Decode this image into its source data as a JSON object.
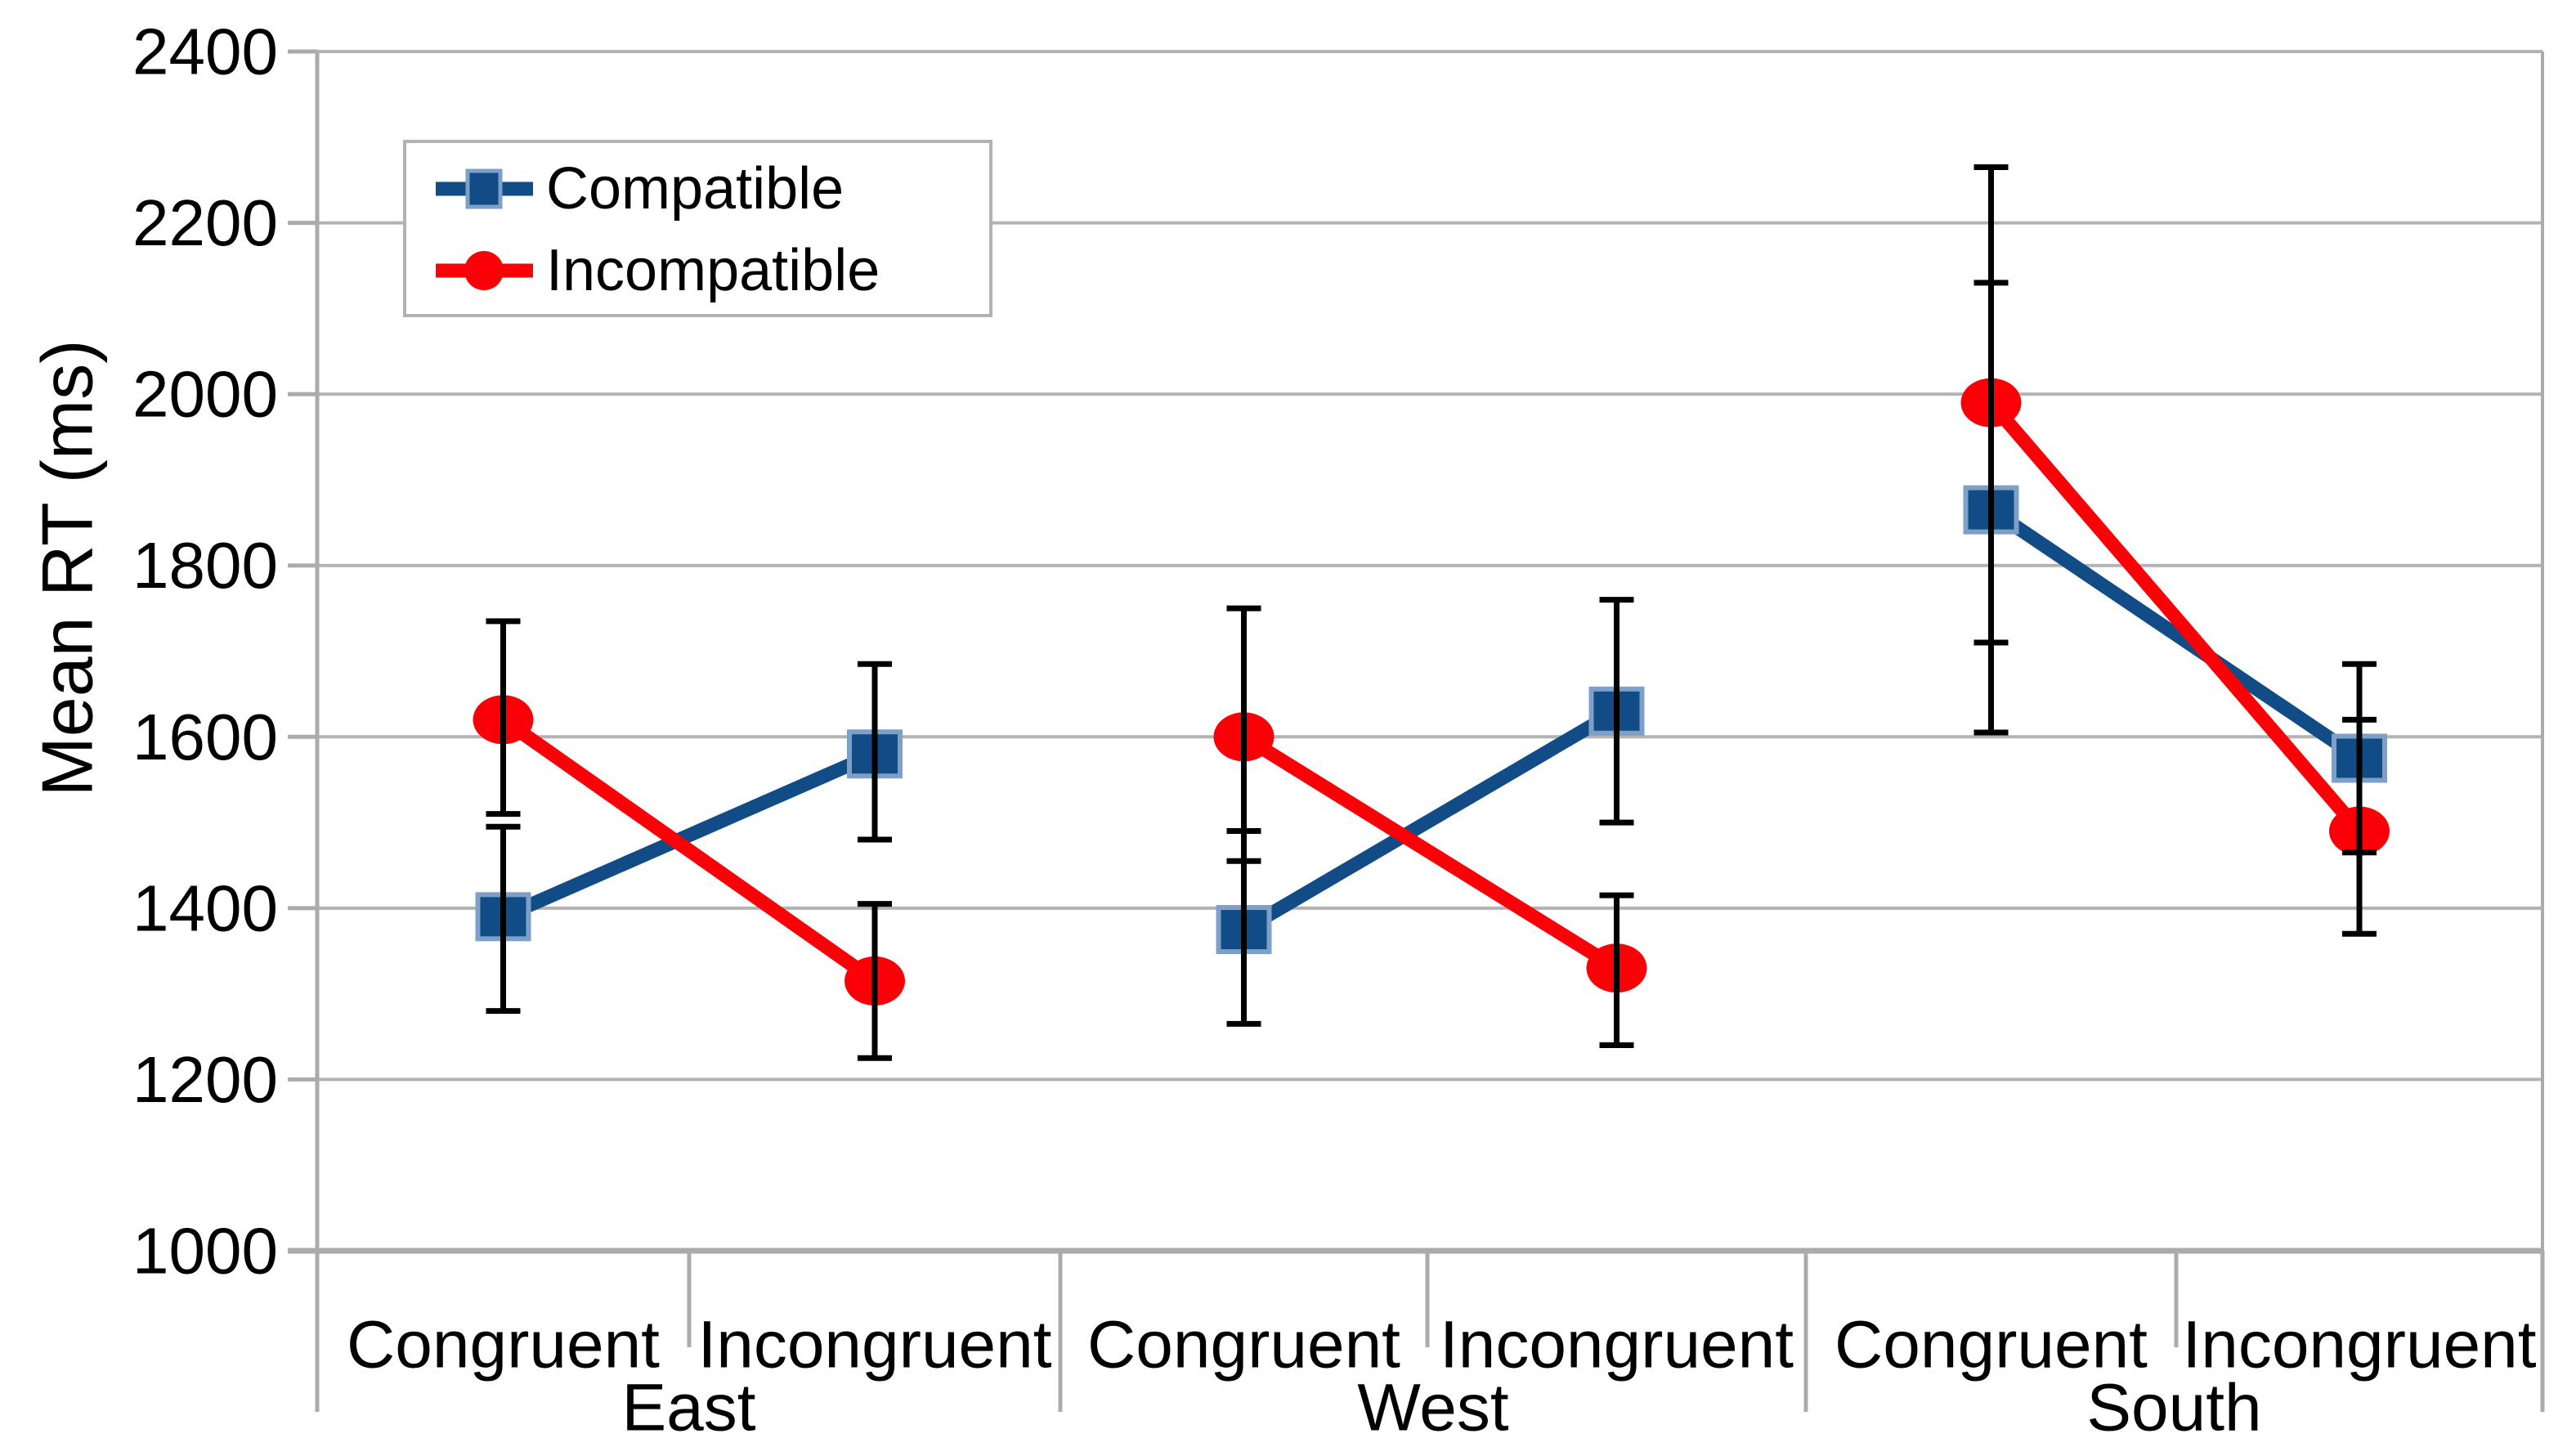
{
  "chart_data": {
    "type": "line",
    "title": "",
    "ylabel": "Mean RT (ms)",
    "xlabel": "",
    "ylim": [
      1000,
      2400
    ],
    "ytick_interval": 200,
    "yticks": [
      2400,
      2200,
      2000,
      1800,
      1600,
      1400,
      1200,
      1000
    ],
    "grid": true,
    "legend_position": "top-left",
    "x_categories": [
      "Congruent",
      "Incongruent",
      "Congruent",
      "Incongruent",
      "Congruent",
      "Incongruent"
    ],
    "groups": [
      {
        "label": "East",
        "categories": [
          "Congruent",
          "Incongruent"
        ]
      },
      {
        "label": "West",
        "categories": [
          "Congruent",
          "Incongruent"
        ]
      },
      {
        "label": "South",
        "categories": [
          "Congruent",
          "Incongruent"
        ]
      }
    ],
    "series": [
      {
        "name": "Compatible",
        "marker": "square",
        "color": "#124C87",
        "marker_border": "#7EA0C8",
        "values": [
          1390,
          1580,
          1375,
          1630,
          1865,
          1575
        ],
        "error_low": [
          1280,
          1480,
          1265,
          1500,
          1605,
          1465
        ],
        "error_high": [
          1495,
          1685,
          1490,
          1760,
          2130,
          1685
        ]
      },
      {
        "name": "Incompatible",
        "marker": "circle",
        "color": "#FB0007",
        "marker_border": "#FB0007",
        "values": [
          1620,
          1315,
          1600,
          1330,
          1990,
          1490
        ],
        "error_low": [
          1510,
          1225,
          1455,
          1240,
          1710,
          1370
        ],
        "error_high": [
          1735,
          1405,
          1750,
          1415,
          2265,
          1620
        ]
      }
    ],
    "error_bar_color": "#000000",
    "gridline_color": "#B3B3B3",
    "axis_color": "#ABABAB",
    "text_color": "#000000",
    "background": "#FFFFFF"
  }
}
